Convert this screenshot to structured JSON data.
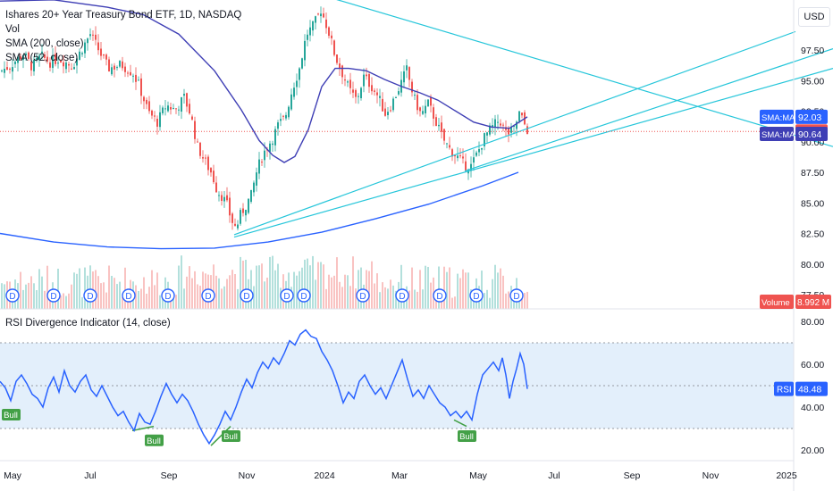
{
  "legend": {
    "title": "Ishares 20+ Year Treasury Bond ETF, 1D, NASDAQ",
    "vol": "Vol",
    "sma200": "SMA (200, close)",
    "sma52": "SMA (52, close)"
  },
  "rsi_title": "RSI Divergence Indicator (14, close)",
  "currency": "USD",
  "colors": {
    "up": "#26a69a",
    "down": "#ef5350",
    "sma200": "#2962ff",
    "sma52": "#3f3fb5",
    "trend": "#26c6da",
    "rsi": "#2962ff",
    "bull": "#43a047",
    "rsi_band": "#e3effb"
  },
  "chart_data": [
    {
      "type": "candlestick",
      "ylim": [
        76.5,
        102.5
      ],
      "price_ticks": [
        "97.50",
        "95.00",
        "92.50",
        "90.00",
        "87.50",
        "85.00",
        "82.50",
        "80.00",
        "77.50"
      ],
      "price_tick_values": [
        97.5,
        95,
        92.5,
        90,
        87.5,
        85,
        82.5,
        80,
        77.5
      ],
      "x_ticks": [
        "May",
        "Jul",
        "Sep",
        "Nov",
        "2024",
        "Mar",
        "May",
        "Jul",
        "Sep",
        "Nov",
        "2025"
      ],
      "last_price": "90.84",
      "sma_tags": [
        {
          "label": "SMA:MA",
          "value": "92.03"
        },
        {
          "label": "SMA:MA",
          "value": "90.64"
        }
      ],
      "volume_tag": {
        "label": "Volume",
        "value": "8.992 M"
      },
      "dividend_marker": "D",
      "close_path": [
        [
          0,
          95.8
        ],
        [
          10,
          96.2
        ],
        [
          25,
          97.2
        ],
        [
          35,
          96.1
        ],
        [
          45,
          97.0
        ],
        [
          55,
          96.5
        ],
        [
          65,
          96.8
        ],
        [
          80,
          96.2
        ],
        [
          90,
          97.5
        ],
        [
          100,
          98.8
        ],
        [
          110,
          97.4
        ],
        [
          120,
          96.0
        ],
        [
          135,
          96.3
        ],
        [
          148,
          95.6
        ],
        [
          155,
          94.5
        ],
        [
          165,
          92.4
        ],
        [
          175,
          91.6
        ],
        [
          185,
          93.0
        ],
        [
          195,
          92.6
        ],
        [
          205,
          93.6
        ],
        [
          212,
          92.3
        ],
        [
          220,
          89.6
        ],
        [
          228,
          88.4
        ],
        [
          236,
          87.4
        ],
        [
          242,
          86.0
        ],
        [
          248,
          85.5
        ],
        [
          253,
          84.8
        ],
        [
          258,
          83.6
        ],
        [
          263,
          82.9
        ],
        [
          268,
          84.0
        ],
        [
          274,
          84.8
        ],
        [
          280,
          85.6
        ],
        [
          286,
          87.5
        ],
        [
          292,
          88.8
        ],
        [
          298,
          89.6
        ],
        [
          304,
          90.3
        ],
        [
          310,
          91.3
        ],
        [
          318,
          92.0
        ],
        [
          326,
          94.3
        ],
        [
          334,
          96.0
        ],
        [
          342,
          98.8
        ],
        [
          350,
          99.5
        ],
        [
          358,
          100.8
        ],
        [
          366,
          99.2
        ],
        [
          374,
          97.0
        ],
        [
          382,
          95.6
        ],
        [
          390,
          94.2
        ],
        [
          398,
          93.4
        ],
        [
          406,
          95.3
        ],
        [
          414,
          94.6
        ],
        [
          422,
          93.7
        ],
        [
          430,
          92.3
        ],
        [
          438,
          93.2
        ],
        [
          446,
          94.5
        ],
        [
          454,
          95.9
        ],
        [
          462,
          93.6
        ],
        [
          470,
          92.2
        ],
        [
          478,
          93.1
        ],
        [
          486,
          91.8
        ],
        [
          494,
          90.3
        ],
        [
          502,
          89.4
        ],
        [
          510,
          88.8
        ],
        [
          518,
          88.1
        ],
        [
          526,
          88.0
        ],
        [
          534,
          89.2
        ],
        [
          542,
          90.5
        ],
        [
          550,
          91.2
        ],
        [
          558,
          91.8
        ],
        [
          566,
          90.6
        ],
        [
          574,
          91.0
        ],
        [
          580,
          92.3
        ],
        [
          586,
          91.4
        ],
        [
          590,
          90.84
        ]
      ],
      "sma200_path": [
        [
          0,
          82.5
        ],
        [
          60,
          81.8
        ],
        [
          120,
          81.4
        ],
        [
          180,
          81.25
        ],
        [
          240,
          81.3
        ],
        [
          300,
          81.8
        ],
        [
          360,
          82.6
        ],
        [
          420,
          83.7
        ],
        [
          480,
          84.9
        ],
        [
          540,
          86.4
        ],
        [
          580,
          87.5
        ]
      ],
      "sma52_path": [
        [
          0,
          101.5
        ],
        [
          60,
          101.6
        ],
        [
          120,
          101.0
        ],
        [
          160,
          100.4
        ],
        [
          200,
          98.8
        ],
        [
          240,
          95.8
        ],
        [
          270,
          92.6
        ],
        [
          290,
          90.1
        ],
        [
          305,
          88.9
        ],
        [
          318,
          88.3
        ],
        [
          330,
          88.8
        ],
        [
          345,
          91.0
        ],
        [
          360,
          94.5
        ],
        [
          375,
          96.0
        ],
        [
          390,
          96.0
        ],
        [
          410,
          95.8
        ],
        [
          430,
          95.1
        ],
        [
          450,
          94.5
        ],
        [
          470,
          94.0
        ],
        [
          490,
          93.4
        ],
        [
          510,
          92.5
        ],
        [
          530,
          91.6
        ],
        [
          550,
          91.2
        ],
        [
          570,
          91.1
        ],
        [
          590,
          92.03
        ]
      ],
      "trendlines": [
        {
          "from": [
            350,
            102.2
          ],
          "to": [
            932,
            89.6
          ]
        },
        {
          "from": [
            262,
            82.4
          ],
          "to": [
            890,
            99.0
          ]
        },
        {
          "from": [
            262,
            82.2
          ],
          "to": [
            932,
            96.0
          ]
        },
        {
          "from": [
            520,
            87.6
          ],
          "to": [
            932,
            97.6
          ]
        }
      ]
    },
    {
      "type": "line",
      "title": "RSI Divergence Indicator (14, close)",
      "ylim": [
        17,
        80
      ],
      "y_ticks": [
        "80.00",
        "60.00",
        "40.00",
        "20.00"
      ],
      "y_tick_values": [
        80,
        60,
        40,
        20
      ],
      "band": [
        30,
        70
      ],
      "last_value": "48.48",
      "bull_label": "Bull",
      "bull_points": [
        [
          12,
          40
        ],
        [
          172,
          28
        ],
        [
          258,
          30
        ],
        [
          522,
          30
        ]
      ],
      "bull_divergences": [
        {
          "from": [
            148,
            29
          ],
          "to": [
            172,
            31
          ]
        },
        {
          "from": [
            236,
            22
          ],
          "to": [
            258,
            31
          ]
        },
        {
          "from": [
            508,
            34
          ],
          "to": [
            522,
            31
          ]
        }
      ],
      "rsi_path": [
        [
          0,
          52
        ],
        [
          6,
          49
        ],
        [
          12,
          43
        ],
        [
          18,
          52
        ],
        [
          24,
          55
        ],
        [
          30,
          51
        ],
        [
          36,
          46
        ],
        [
          42,
          44
        ],
        [
          48,
          40
        ],
        [
          54,
          49
        ],
        [
          60,
          54
        ],
        [
          66,
          47
        ],
        [
          72,
          57
        ],
        [
          78,
          50
        ],
        [
          84,
          47
        ],
        [
          90,
          52
        ],
        [
          96,
          55
        ],
        [
          102,
          48
        ],
        [
          108,
          45
        ],
        [
          114,
          50
        ],
        [
          120,
          45
        ],
        [
          126,
          40
        ],
        [
          132,
          36
        ],
        [
          138,
          38
        ],
        [
          144,
          33
        ],
        [
          150,
          29
        ],
        [
          156,
          37
        ],
        [
          162,
          33
        ],
        [
          168,
          32
        ],
        [
          174,
          38
        ],
        [
          180,
          45
        ],
        [
          186,
          51
        ],
        [
          192,
          46
        ],
        [
          198,
          42
        ],
        [
          204,
          46
        ],
        [
          210,
          43
        ],
        [
          216,
          38
        ],
        [
          222,
          32
        ],
        [
          228,
          27
        ],
        [
          234,
          23
        ],
        [
          240,
          27
        ],
        [
          246,
          32
        ],
        [
          252,
          38
        ],
        [
          258,
          34
        ],
        [
          264,
          40
        ],
        [
          270,
          47
        ],
        [
          276,
          53
        ],
        [
          282,
          49
        ],
        [
          288,
          56
        ],
        [
          294,
          61
        ],
        [
          300,
          58
        ],
        [
          306,
          63
        ],
        [
          312,
          60
        ],
        [
          318,
          65
        ],
        [
          324,
          71
        ],
        [
          330,
          69
        ],
        [
          336,
          74
        ],
        [
          342,
          76
        ],
        [
          348,
          73
        ],
        [
          354,
          72
        ],
        [
          360,
          66
        ],
        [
          366,
          62
        ],
        [
          372,
          57
        ],
        [
          378,
          50
        ],
        [
          384,
          42
        ],
        [
          390,
          47
        ],
        [
          396,
          44
        ],
        [
          402,
          52
        ],
        [
          408,
          55
        ],
        [
          414,
          50
        ],
        [
          420,
          46
        ],
        [
          426,
          49
        ],
        [
          432,
          44
        ],
        [
          438,
          50
        ],
        [
          444,
          56
        ],
        [
          450,
          62
        ],
        [
          456,
          53
        ],
        [
          462,
          45
        ],
        [
          468,
          48
        ],
        [
          474,
          44
        ],
        [
          480,
          50
        ],
        [
          486,
          46
        ],
        [
          492,
          42
        ],
        [
          498,
          40
        ],
        [
          504,
          36
        ],
        [
          510,
          38
        ],
        [
          516,
          35
        ],
        [
          522,
          38
        ],
        [
          528,
          34
        ],
        [
          534,
          46
        ],
        [
          540,
          55
        ],
        [
          546,
          58
        ],
        [
          552,
          61
        ],
        [
          558,
          57
        ],
        [
          562,
          63
        ],
        [
          566,
          55
        ],
        [
          570,
          44
        ],
        [
          574,
          52
        ],
        [
          578,
          58
        ],
        [
          582,
          65
        ],
        [
          586,
          60
        ],
        [
          590,
          48.5
        ]
      ]
    }
  ]
}
